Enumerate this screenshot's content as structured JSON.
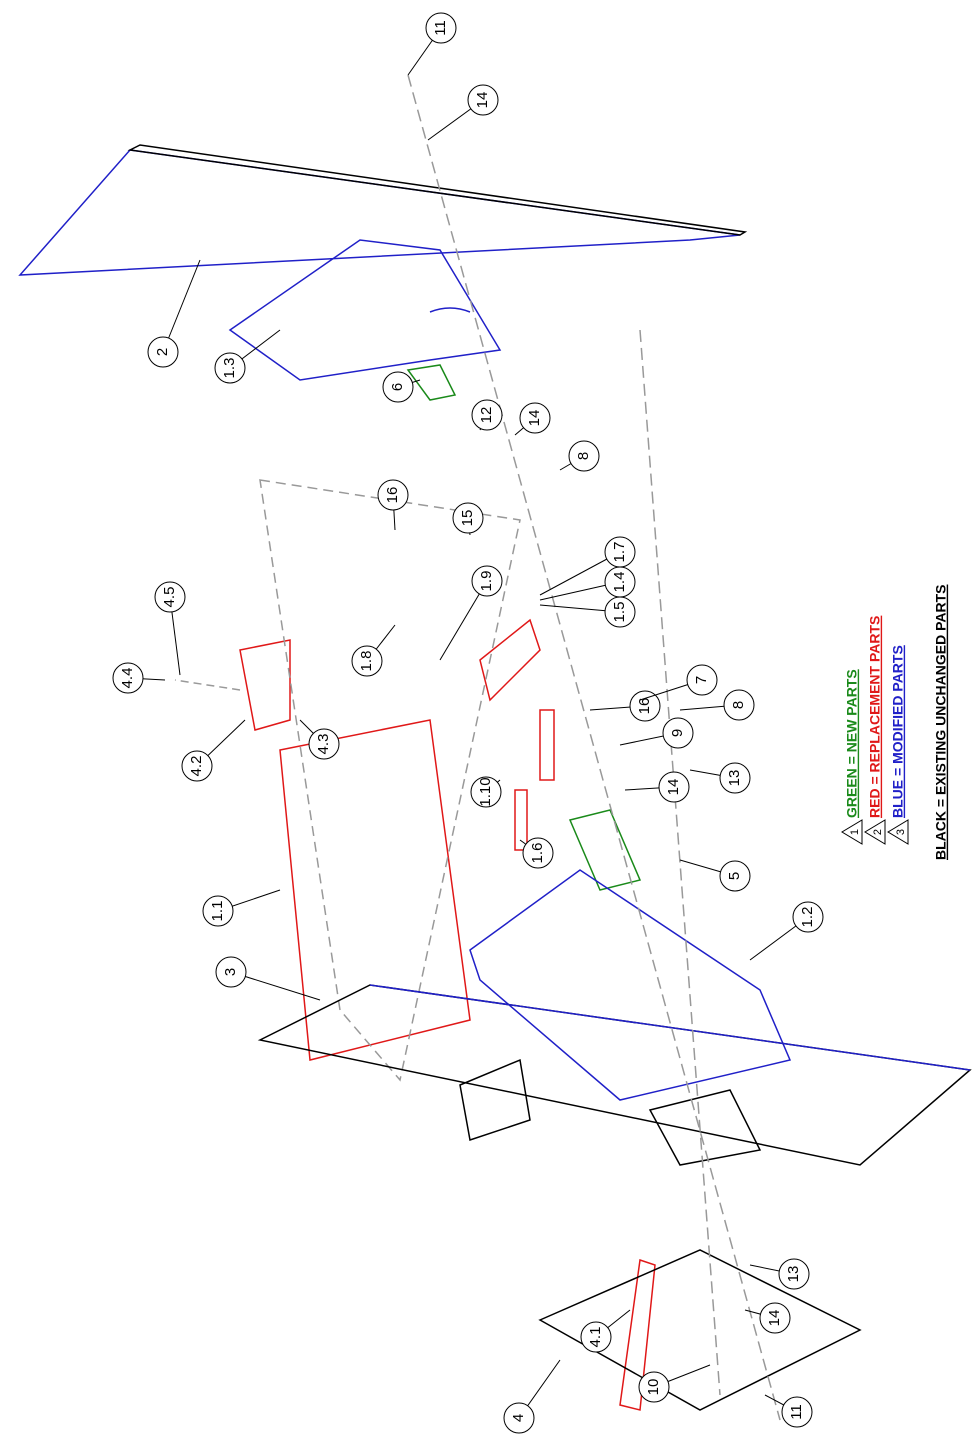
{
  "callouts": [
    "11",
    "14",
    "2",
    "1.3",
    "6",
    "12",
    "14",
    "8",
    "16",
    "15",
    "1.7",
    "1.4",
    "1.5",
    "4.5",
    "1.9",
    "1.8",
    "16",
    "7",
    "4.4",
    "4.3",
    "4.2",
    "8",
    "9",
    "13",
    "14",
    "1.10",
    "1.6",
    "5",
    "1.1",
    "1.2",
    "3",
    "13",
    "14",
    "4.1",
    "10",
    "11",
    "4"
  ],
  "legend": [
    {
      "marker": "1",
      "text": "GREEN = NEW PARTS",
      "color": "#1a8a1a"
    },
    {
      "marker": "2",
      "text": "RED = REPLACEMENT PARTS",
      "color": "#e01818"
    },
    {
      "marker": "3",
      "text": "BLUE = MODIFIED PARTS",
      "color": "#2020c8"
    },
    {
      "text": "BLACK = EXISTING UNCHANGED PARTS",
      "color": "#000000"
    }
  ]
}
